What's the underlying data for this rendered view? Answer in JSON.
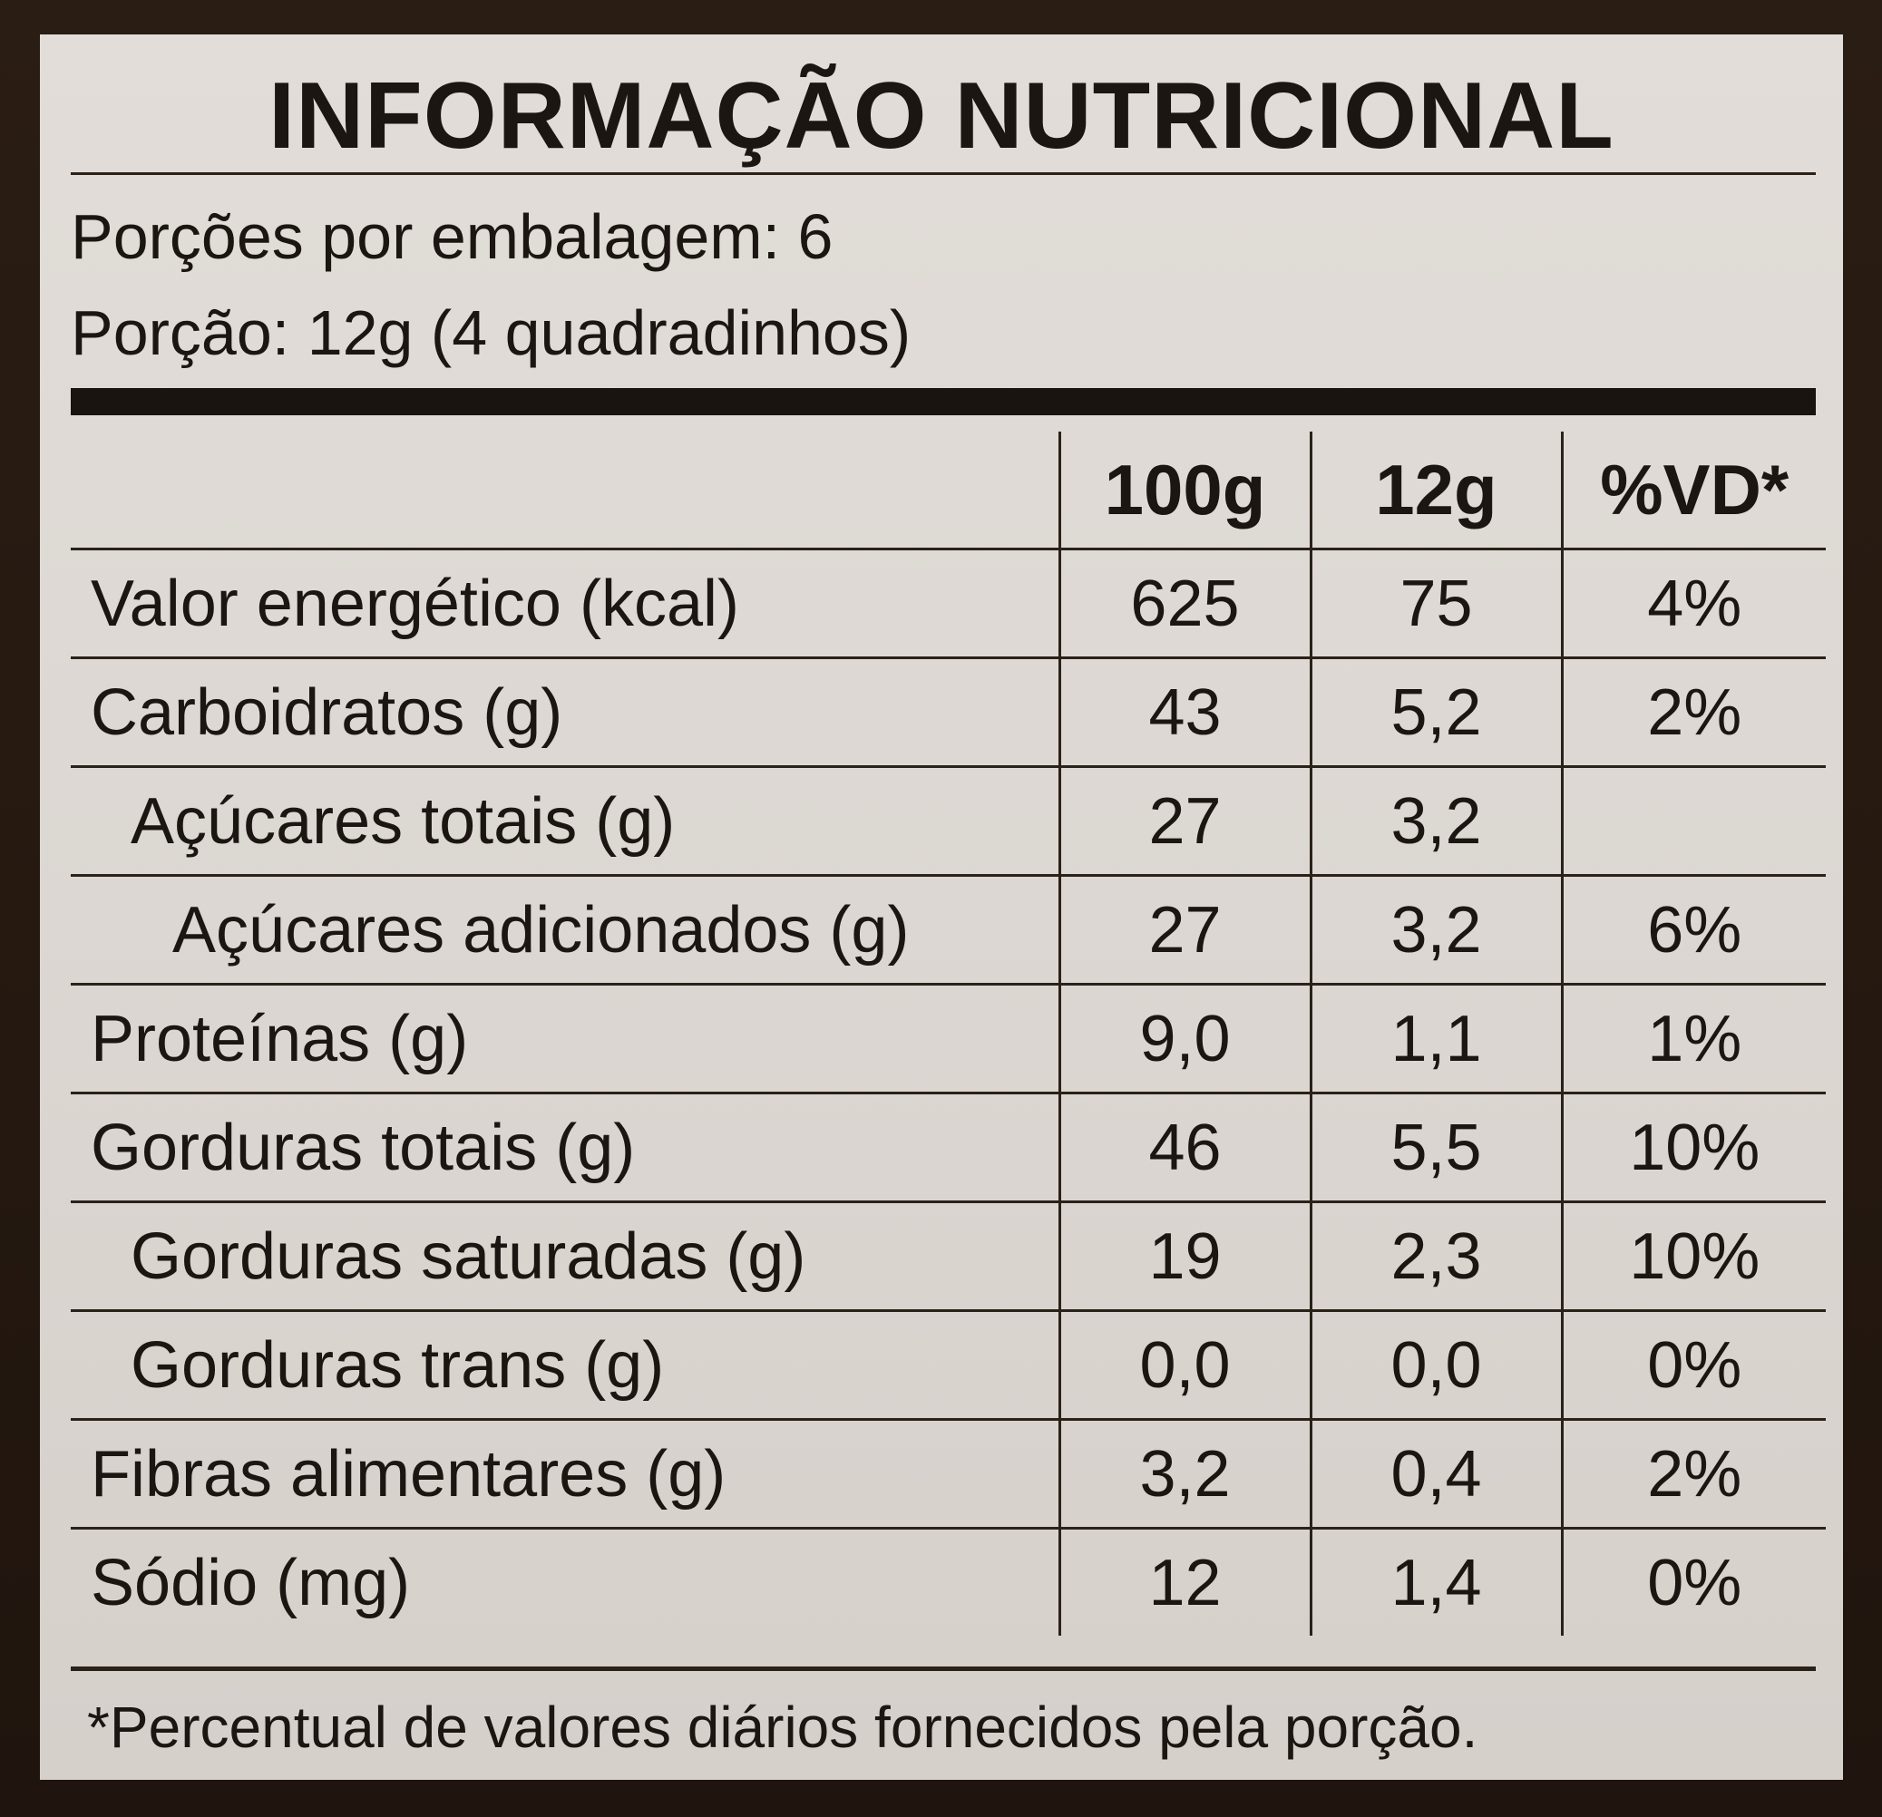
{
  "title": "INFORMAÇÃO NUTRICIONAL",
  "servings_per_package": "Porções por embalagem: 6",
  "serving_size": "Porção: 12g (4 quadradinhos)",
  "columns": [
    "100g",
    "12g",
    "%VD*"
  ],
  "rows": [
    {
      "name": "Valor energético (kcal)",
      "indent": 0,
      "per100": "625",
      "per12": "75",
      "vd": "4%"
    },
    {
      "name": "Carboidratos (g)",
      "indent": 0,
      "per100": "43",
      "per12": "5,2",
      "vd": "2%"
    },
    {
      "name": "Açúcares totais (g)",
      "indent": 1,
      "per100": "27",
      "per12": "3,2",
      "vd": ""
    },
    {
      "name": "Açúcares adicionados (g)",
      "indent": 2,
      "per100": "27",
      "per12": "3,2",
      "vd": "6%"
    },
    {
      "name": "Proteínas (g)",
      "indent": 0,
      "per100": "9,0",
      "per12": "1,1",
      "vd": "1%"
    },
    {
      "name": "Gorduras totais (g)",
      "indent": 0,
      "per100": "46",
      "per12": "5,5",
      "vd": "10%"
    },
    {
      "name": "Gorduras saturadas (g)",
      "indent": 1,
      "per100": "19",
      "per12": "2,3",
      "vd": "10%"
    },
    {
      "name": "Gorduras trans (g)",
      "indent": 1,
      "per100": "0,0",
      "per12": "0,0",
      "vd": "0%"
    },
    {
      "name": "Fibras alimentares (g)",
      "indent": 0,
      "per100": "3,2",
      "per12": "0,4",
      "vd": "2%"
    },
    {
      "name": "Sódio (mg)",
      "indent": 0,
      "per100": "12",
      "per12": "1,4",
      "vd": "0%"
    }
  ],
  "footnote": "*Percentual de valores diários fornecidos pela porção."
}
